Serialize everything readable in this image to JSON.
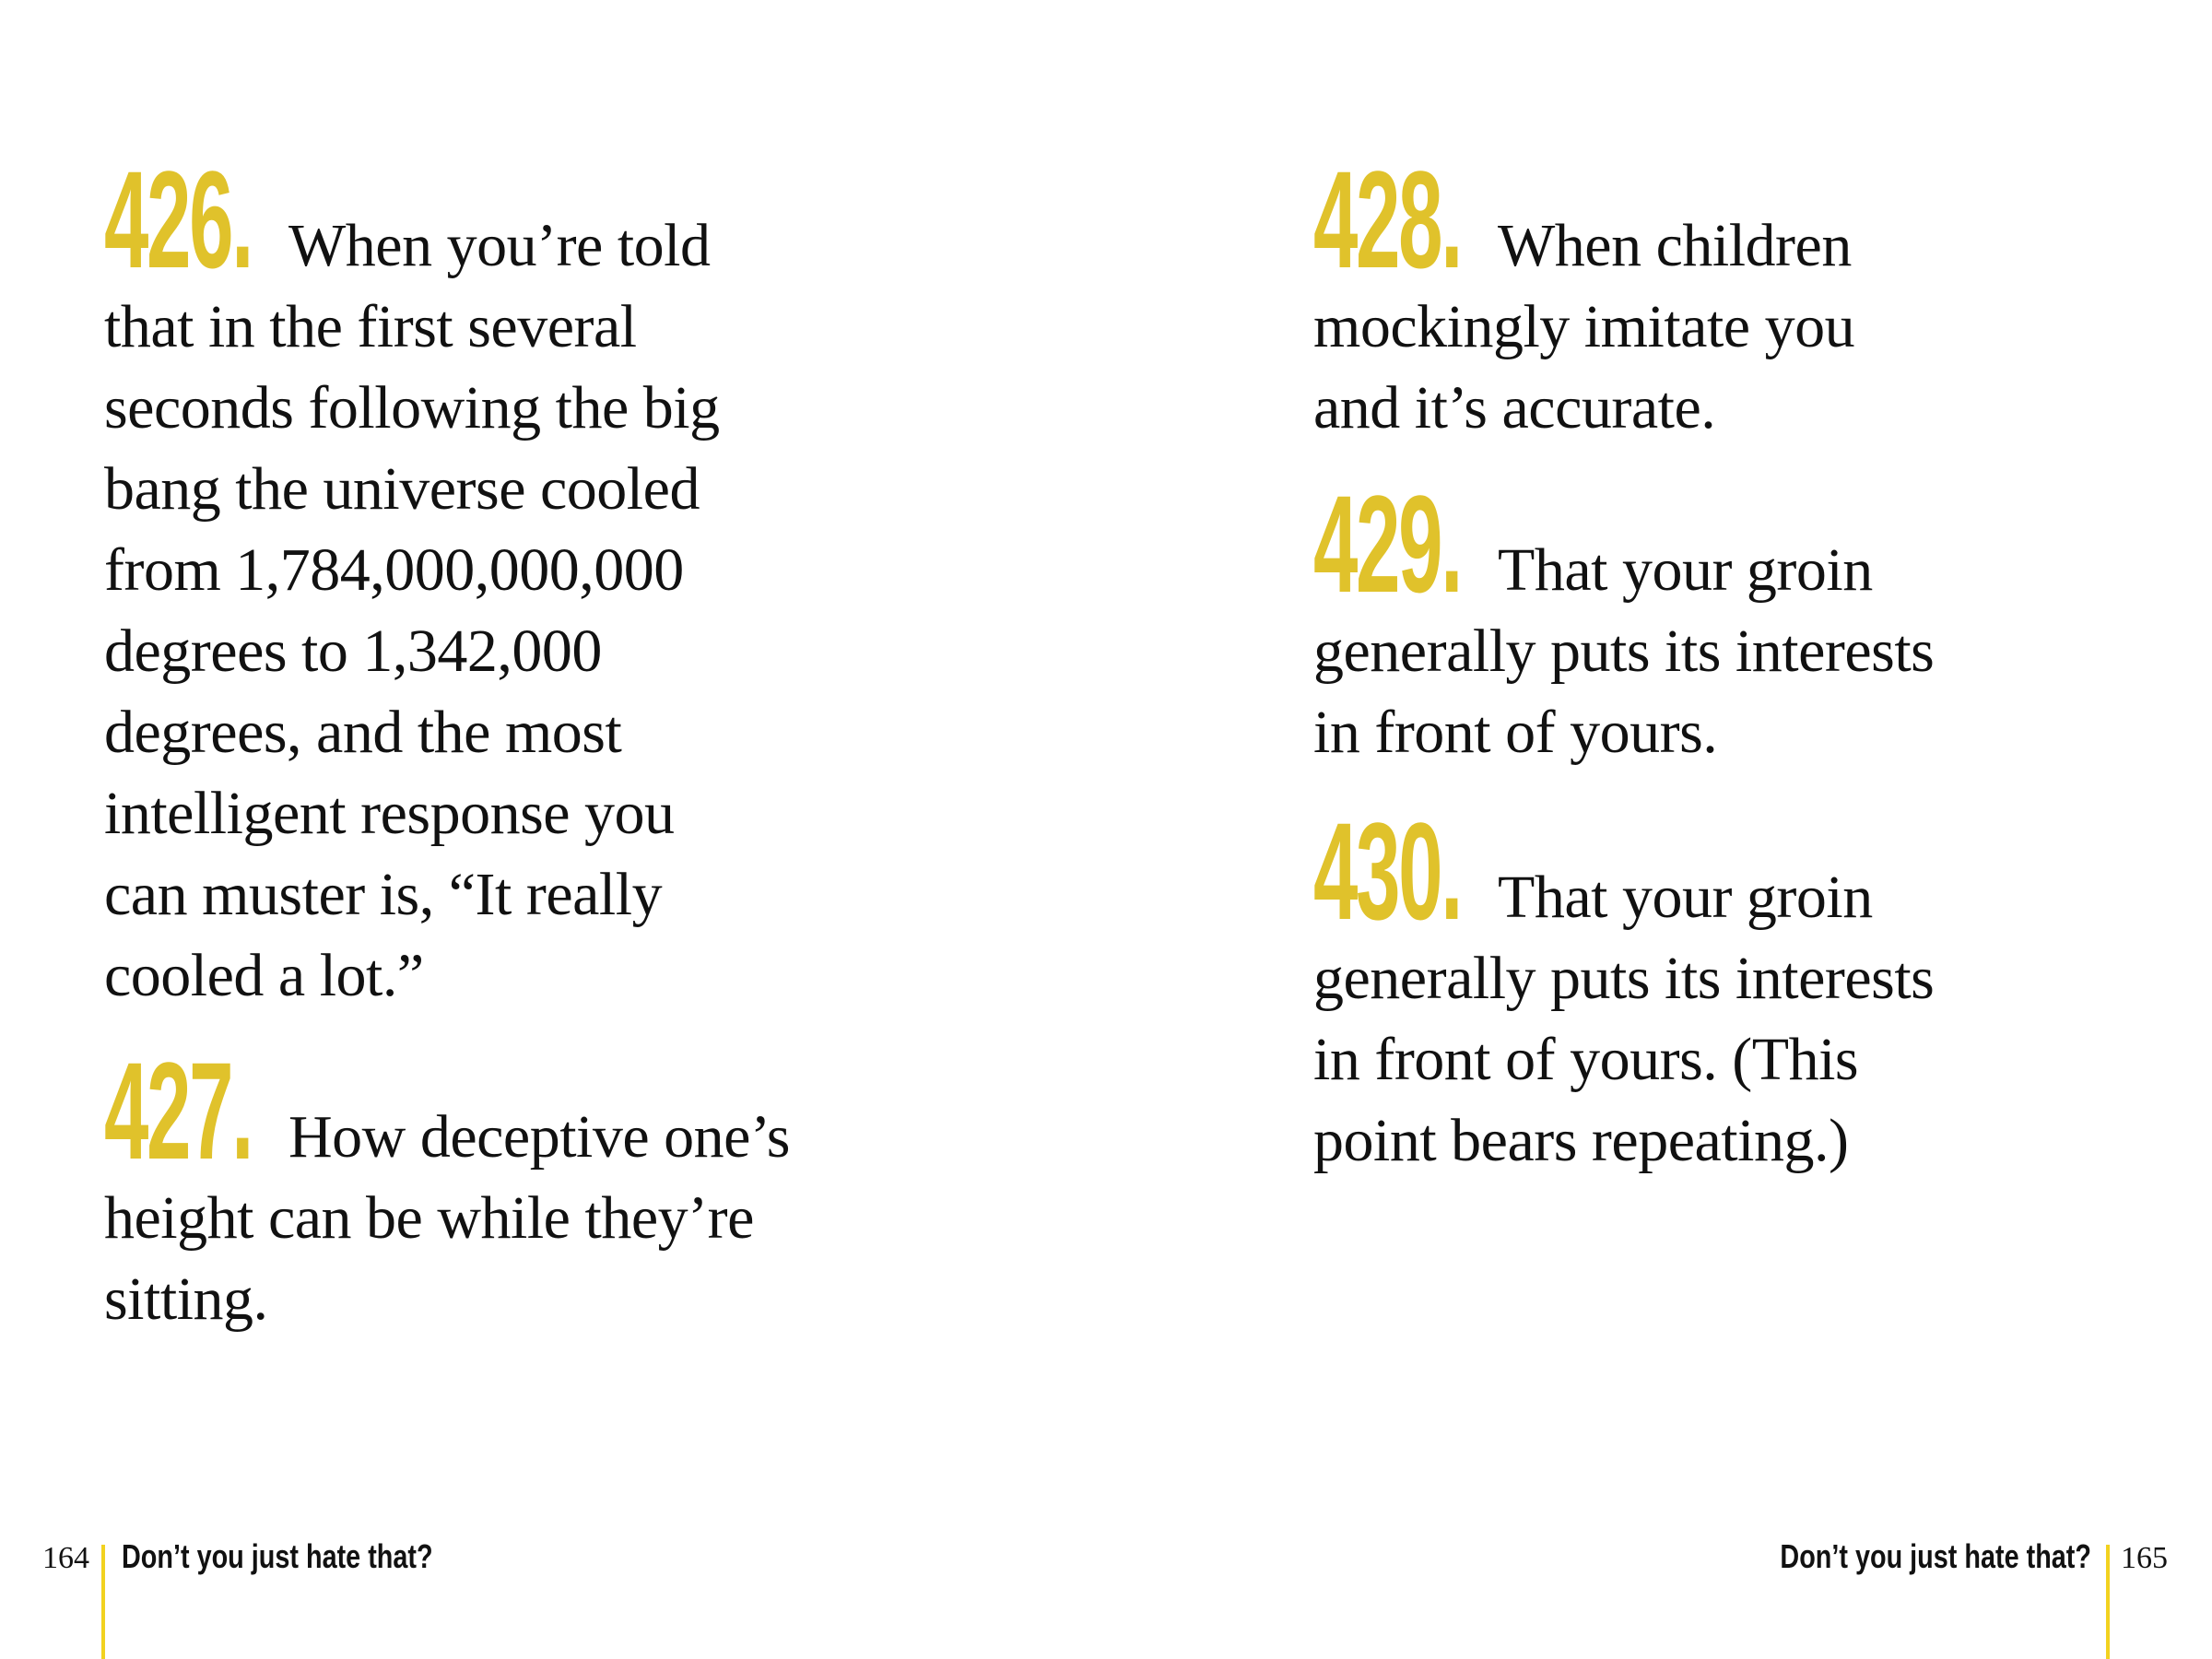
{
  "left_page": {
    "items": [
      {
        "number": "426.",
        "lines": [
          "When you’re told",
          "that in the first several",
          "seconds following the big",
          "bang the universe cooled",
          "from 1,784,000,000,000",
          "degrees to 1,342,000",
          "degrees, and the most",
          "intelligent response you",
          "can muster is, “It really",
          "cooled a lot.”"
        ]
      },
      {
        "number": "427.",
        "lines": [
          "How deceptive one’s",
          "height can be while they’re",
          "sitting."
        ]
      }
    ],
    "page_number": "164",
    "running_head": "Don’t you just hate that?"
  },
  "right_page": {
    "items": [
      {
        "number": "428.",
        "lines": [
          "When children",
          "mockingly imitate you",
          "and it’s accurate."
        ]
      },
      {
        "number": "429.",
        "lines": [
          "That your groin",
          "generally puts its interests",
          "in front of yours."
        ]
      },
      {
        "number": "430.",
        "lines": [
          "That your groin",
          "generally puts its interests",
          "in front of yours. (This",
          "point bears repeating.)"
        ]
      }
    ],
    "page_number": "165",
    "running_head": "Don’t you just hate that?"
  },
  "colors": {
    "accent": "#e0c22b",
    "rule": "#f2d21f",
    "text": "#111111"
  }
}
